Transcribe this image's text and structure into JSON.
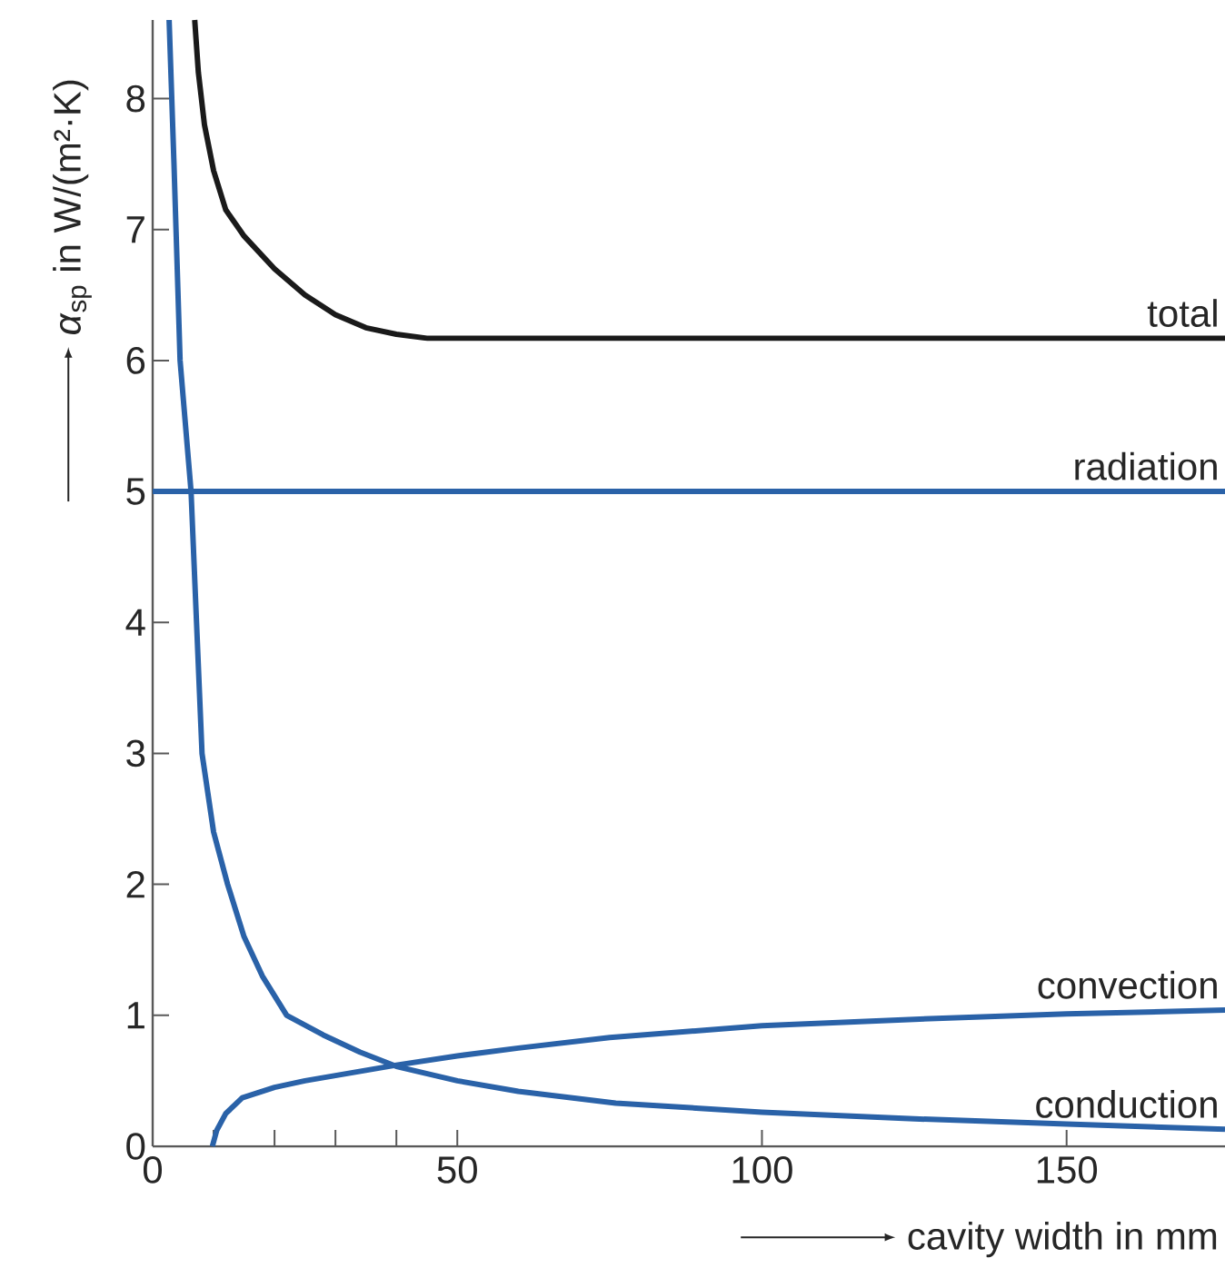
{
  "chart_data": {
    "type": "line",
    "xlabel": "cavity width in mm",
    "ylabel": "*α*$_{sp}$ in W/(m²·K)",
    "xlim": [
      0,
      176
    ],
    "ylim": [
      0,
      8.6
    ],
    "xticks": [
      0,
      {
        "value": 10,
        "label": null
      },
      {
        "value": 20,
        "label": null
      },
      {
        "value": 30,
        "label": null
      },
      {
        "value": 40,
        "label": null
      },
      50,
      100,
      150
    ],
    "yticks": [
      0,
      1,
      2,
      3,
      4,
      5,
      6,
      7,
      8
    ],
    "series": [
      {
        "name": "total",
        "color": "#1a1a1a",
        "x": [
          6.9,
          7.5,
          8.5,
          10,
          12,
          15,
          20,
          25,
          30,
          35,
          40,
          45,
          50,
          176
        ],
        "values": [
          8.6,
          8.2,
          7.8,
          7.45,
          7.15,
          6.95,
          6.7,
          6.5,
          6.35,
          6.25,
          6.2,
          6.17,
          6.17,
          6.17
        ]
      },
      {
        "name": "radiation",
        "color": "#2a62a8",
        "x": [
          0,
          176
        ],
        "values": [
          5,
          5
        ]
      },
      {
        "name": "convection",
        "color": "#2a62a8",
        "x": [
          9.8,
          10.5,
          12,
          14.7,
          20,
          25,
          30,
          40,
          50,
          60,
          75,
          100,
          125,
          150,
          176
        ],
        "values": [
          0,
          0.12,
          0.25,
          0.37,
          0.45,
          0.5,
          0.54,
          0.62,
          0.69,
          0.75,
          0.83,
          0.92,
          0.97,
          1.01,
          1.04
        ]
      },
      {
        "name": "conduction",
        "color": "#2a62a8",
        "x": [
          2.7,
          3.5,
          4.5,
          6.3,
          7.2,
          8.1,
          10,
          12.3,
          15,
          18,
          22,
          28,
          34,
          40,
          50,
          60,
          76,
          100,
          125,
          150,
          176
        ],
        "values": [
          8.6,
          7.5,
          6,
          5,
          4,
          3,
          2.4,
          2,
          1.6,
          1.3,
          1.0,
          0.85,
          0.72,
          0.61,
          0.5,
          0.42,
          0.33,
          0.26,
          0.21,
          0.17,
          0.13
        ]
      }
    ]
  }
}
